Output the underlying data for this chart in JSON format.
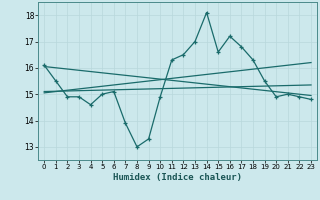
{
  "xlabel": "Humidex (Indice chaleur)",
  "bg_color": "#cce8ec",
  "grid_color": "#b8d8dc",
  "line_color": "#1a6b6b",
  "xlim": [
    -0.5,
    23.5
  ],
  "ylim": [
    12.5,
    18.5
  ],
  "yticks": [
    13,
    14,
    15,
    16,
    17,
    18
  ],
  "xticks": [
    0,
    1,
    2,
    3,
    4,
    5,
    6,
    7,
    8,
    9,
    10,
    11,
    12,
    13,
    14,
    15,
    16,
    17,
    18,
    19,
    20,
    21,
    22,
    23
  ],
  "series1_x": [
    0,
    1,
    2,
    3,
    4,
    5,
    6,
    7,
    8,
    9,
    10,
    11,
    12,
    13,
    14,
    15,
    16,
    17,
    18,
    19,
    20,
    21,
    22,
    23
  ],
  "series1_y": [
    16.1,
    15.5,
    14.9,
    14.9,
    14.6,
    15.0,
    15.1,
    13.9,
    13.0,
    13.3,
    14.9,
    16.3,
    16.5,
    17.0,
    18.1,
    16.6,
    17.2,
    16.8,
    16.3,
    15.5,
    14.9,
    15.0,
    14.9,
    14.8
  ],
  "series2_x": [
    0,
    23
  ],
  "series2_y": [
    15.05,
    16.2
  ],
  "series3_x": [
    0,
    23
  ],
  "series3_y": [
    15.1,
    15.35
  ],
  "series4_x": [
    0,
    23
  ],
  "series4_y": [
    16.05,
    14.95
  ]
}
